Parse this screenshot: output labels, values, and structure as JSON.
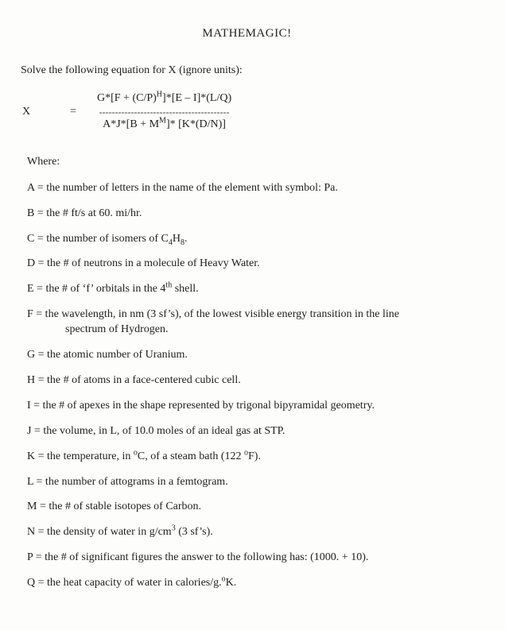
{
  "title": "MATHEMAGIC!",
  "prompt": "Solve the following equation for X (ignore units):",
  "equation": {
    "lhs_symbol": "X",
    "equals": "=",
    "numerator_parts": {
      "p1": "G*[F + (C/P)",
      "sup1": "H",
      "p2": "]*[E – I]*(L/Q)"
    },
    "dashes": "-----------------------------------------",
    "denominator_parts": {
      "p1": "A*J*[B + M",
      "sup1": "M",
      "p2": "]* [K*(D/N)]"
    }
  },
  "where_label": "Where:",
  "defs": {
    "A": "A = the number of letters in the name of the element with symbol: Pa.",
    "B": "B = the # ft/s at 60. mi/hr.",
    "C_pre": "C = the number of isomers of C",
    "C_sub1": "4",
    "C_mid": "H",
    "C_sub2": "8",
    "C_post": ".",
    "D": "D = the # of neutrons in a molecule of Heavy Water.",
    "E_pre": "E = the # of ‘f’ orbitals in the 4",
    "E_sup": "th",
    "E_post": " shell.",
    "F_line1": "F = the wavelength, in nm (3 sf’s), of the lowest visible energy transition in the line",
    "F_line2": "spectrum of Hydrogen.",
    "G": "G = the atomic number of Uranium.",
    "H": "H = the # of atoms in a face-centered cubic cell.",
    "I": "I = the # of apexes in the shape represented by trigonal bipyramidal geometry.",
    "J": "J = the volume, in L, of 10.0 moles of an ideal gas at STP.",
    "K_pre": "K = the temperature, in ",
    "K_deg1": "o",
    "K_c": "C, of a steam bath (122 ",
    "K_deg2": "o",
    "K_post": "F).",
    "L": "L = the number of attograms in a femtogram.",
    "M": "M = the # of stable isotopes of Carbon.",
    "N_pre": "N = the density of water in g/cm",
    "N_sup": "3",
    "N_post": " (3 sf’s).",
    "P": "P = the # of significant figures the answer to the following has:  (1000. + 10).",
    "Q_pre": "Q = the heat capacity of water in calories/g.",
    "Q_deg": "o",
    "Q_post": "K."
  }
}
